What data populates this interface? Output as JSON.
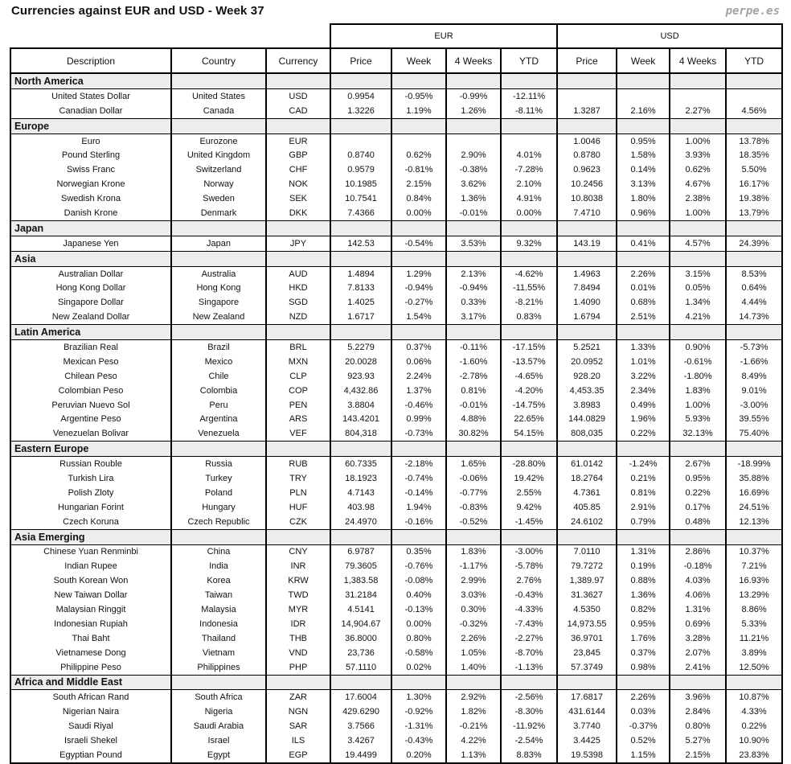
{
  "page": {
    "title": "Currencies against EUR and USD - Week 37",
    "watermark": "perpe.es"
  },
  "colors": {
    "positive": "#009933",
    "negative": "#ff4a4a",
    "section_bg": "#ededed"
  },
  "chart_data": {
    "type": "table",
    "group_headers": [
      "EUR",
      "USD"
    ],
    "columns": [
      "Description",
      "Country",
      "Currency",
      "Price",
      "Week",
      "4 Weeks",
      "YTD",
      "Price",
      "Week",
      "4 Weeks",
      "YTD"
    ],
    "sections": [
      {
        "name": "North America",
        "rows": [
          {
            "description": "United States Dollar",
            "country": "United States",
            "currency": "USD",
            "eur": [
              "0.9954",
              "-0.95%",
              "-0.99%",
              "-12.11%"
            ],
            "usd": [
              "",
              "",
              "",
              ""
            ]
          },
          {
            "description": "Canadian Dollar",
            "country": "Canada",
            "currency": "CAD",
            "eur": [
              "1.3226",
              "1.19%",
              "1.26%",
              "-8.11%"
            ],
            "usd": [
              "1.3287",
              "2.16%",
              "2.27%",
              "4.56%"
            ]
          }
        ]
      },
      {
        "name": "Europe",
        "rows": [
          {
            "description": "Euro",
            "country": "Eurozone",
            "currency": "EUR",
            "eur": [
              "",
              "",
              "",
              ""
            ],
            "usd": [
              "1.0046",
              "0.95%",
              "1.00%",
              "13.78%"
            ]
          },
          {
            "description": "Pound Sterling",
            "country": "United Kingdom",
            "currency": "GBP",
            "eur": [
              "0.8740",
              "0.62%",
              "2.90%",
              "4.01%"
            ],
            "usd": [
              "0.8780",
              "1.58%",
              "3.93%",
              "18.35%"
            ]
          },
          {
            "description": "Swiss Franc",
            "country": "Switzerland",
            "currency": "CHF",
            "eur": [
              "0.9579",
              "-0.81%",
              "-0.38%",
              "-7.28%"
            ],
            "usd": [
              "0.9623",
              "0.14%",
              "0.62%",
              "5.50%"
            ]
          },
          {
            "description": "Norwegian Krone",
            "country": "Norway",
            "currency": "NOK",
            "eur": [
              "10.1985",
              "2.15%",
              "3.62%",
              "2.10%"
            ],
            "usd": [
              "10.2456",
              "3.13%",
              "4.67%",
              "16.17%"
            ]
          },
          {
            "description": "Swedish Krona",
            "country": "Sweden",
            "currency": "SEK",
            "eur": [
              "10.7541",
              "0.84%",
              "1.36%",
              "4.91%"
            ],
            "usd": [
              "10.8038",
              "1.80%",
              "2.38%",
              "19.38%"
            ]
          },
          {
            "description": "Danish Krone",
            "country": "Denmark",
            "currency": "DKK",
            "eur": [
              "7.4366",
              "0.00%",
              "-0.01%",
              "0.00%"
            ],
            "usd": [
              "7.4710",
              "0.96%",
              "1.00%",
              "13.79%"
            ]
          }
        ]
      },
      {
        "name": "Japan",
        "rows": [
          {
            "description": "Japanese Yen",
            "country": "Japan",
            "currency": "JPY",
            "eur": [
              "142.53",
              "-0.54%",
              "3.53%",
              "9.32%"
            ],
            "usd": [
              "143.19",
              "0.41%",
              "4.57%",
              "24.39%"
            ]
          }
        ]
      },
      {
        "name": "Asia",
        "rows": [
          {
            "description": "Australian Dollar",
            "country": "Australia",
            "currency": "AUD",
            "eur": [
              "1.4894",
              "1.29%",
              "2.13%",
              "-4.62%"
            ],
            "usd": [
              "1.4963",
              "2.26%",
              "3.15%",
              "8.53%"
            ]
          },
          {
            "description": "Hong Kong Dollar",
            "country": "Hong Kong",
            "currency": "HKD",
            "eur": [
              "7.8133",
              "-0.94%",
              "-0.94%",
              "-11.55%"
            ],
            "usd": [
              "7.8494",
              "0.01%",
              "0.05%",
              "0.64%"
            ]
          },
          {
            "description": "Singapore Dollar",
            "country": "Singapore",
            "currency": "SGD",
            "eur": [
              "1.4025",
              "-0.27%",
              "0.33%",
              "-8.21%"
            ],
            "usd": [
              "1.4090",
              "0.68%",
              "1.34%",
              "4.44%"
            ]
          },
          {
            "description": "New Zealand Dollar",
            "country": "New Zealand",
            "currency": "NZD",
            "eur": [
              "1.6717",
              "1.54%",
              "3.17%",
              "0.83%"
            ],
            "usd": [
              "1.6794",
              "2.51%",
              "4.21%",
              "14.73%"
            ]
          }
        ]
      },
      {
        "name": "Latin America",
        "rows": [
          {
            "description": "Brazilian Real",
            "country": "Brazil",
            "currency": "BRL",
            "eur": [
              "5.2279",
              "0.37%",
              "-0.11%",
              "-17.15%"
            ],
            "usd": [
              "5.2521",
              "1.33%",
              "0.90%",
              "-5.73%"
            ]
          },
          {
            "description": "Mexican Peso",
            "country": "Mexico",
            "currency": "MXN",
            "eur": [
              "20.0028",
              "0.06%",
              "-1.60%",
              "-13.57%"
            ],
            "usd": [
              "20.0952",
              "1.01%",
              "-0.61%",
              "-1.66%"
            ]
          },
          {
            "description": "Chilean Peso",
            "country": "Chile",
            "currency": "CLP",
            "eur": [
              "923.93",
              "2.24%",
              "-2.78%",
              "-4.65%"
            ],
            "usd": [
              "928.20",
              "3.22%",
              "-1.80%",
              "8.49%"
            ]
          },
          {
            "description": "Colombian Peso",
            "country": "Colombia",
            "currency": "COP",
            "eur": [
              "4,432.86",
              "1.37%",
              "0.81%",
              "-4.20%"
            ],
            "usd": [
              "4,453.35",
              "2.34%",
              "1.83%",
              "9.01%"
            ]
          },
          {
            "description": "Peruvian Nuevo Sol",
            "country": "Peru",
            "currency": "PEN",
            "eur": [
              "3.8804",
              "-0.46%",
              "-0.01%",
              "-14.75%"
            ],
            "usd": [
              "3.8983",
              "0.49%",
              "1.00%",
              "-3.00%"
            ]
          },
          {
            "description": "Argentine Peso",
            "country": "Argentina",
            "currency": "ARS",
            "eur": [
              "143.4201",
              "0.99%",
              "4.88%",
              "22.65%"
            ],
            "usd": [
              "144.0829",
              "1.96%",
              "5.93%",
              "39.55%"
            ]
          },
          {
            "description": "Venezuelan Bolivar",
            "country": "Venezuela",
            "currency": "VEF",
            "eur": [
              "804,318",
              "-0.73%",
              "30.82%",
              "54.15%"
            ],
            "usd": [
              "808,035",
              "0.22%",
              "32.13%",
              "75.40%"
            ]
          }
        ]
      },
      {
        "name": "Eastern Europe",
        "rows": [
          {
            "description": "Russian Rouble",
            "country": "Russia",
            "currency": "RUB",
            "eur": [
              "60.7335",
              "-2.18%",
              "1.65%",
              "-28.80%"
            ],
            "usd": [
              "61.0142",
              "-1.24%",
              "2.67%",
              "-18.99%"
            ]
          },
          {
            "description": "Turkish Lira",
            "country": "Turkey",
            "currency": "TRY",
            "eur": [
              "18.1923",
              "-0.74%",
              "-0.06%",
              "19.42%"
            ],
            "usd": [
              "18.2764",
              "0.21%",
              "0.95%",
              "35.88%"
            ]
          },
          {
            "description": "Polish Zloty",
            "country": "Poland",
            "currency": "PLN",
            "eur": [
              "4.7143",
              "-0.14%",
              "-0.77%",
              "2.55%"
            ],
            "usd": [
              "4.7361",
              "0.81%",
              "0.22%",
              "16.69%"
            ]
          },
          {
            "description": "Hungarian Forint",
            "country": "Hungary",
            "currency": "HUF",
            "eur": [
              "403.98",
              "1.94%",
              "-0.83%",
              "9.42%"
            ],
            "usd": [
              "405.85",
              "2.91%",
              "0.17%",
              "24.51%"
            ]
          },
          {
            "description": "Czech Koruna",
            "country": "Czech Republic",
            "currency": "CZK",
            "eur": [
              "24.4970",
              "-0.16%",
              "-0.52%",
              "-1.45%"
            ],
            "usd": [
              "24.6102",
              "0.79%",
              "0.48%",
              "12.13%"
            ]
          }
        ]
      },
      {
        "name": "Asia Emerging",
        "rows": [
          {
            "description": "Chinese Yuan Renminbi",
            "country": "China",
            "currency": "CNY",
            "eur": [
              "6.9787",
              "0.35%",
              "1.83%",
              "-3.00%"
            ],
            "usd": [
              "7.0110",
              "1.31%",
              "2.86%",
              "10.37%"
            ]
          },
          {
            "description": "Indian Rupee",
            "country": "India",
            "currency": "INR",
            "eur": [
              "79.3605",
              "-0.76%",
              "-1.17%",
              "-5.78%"
            ],
            "usd": [
              "79.7272",
              "0.19%",
              "-0.18%",
              "7.21%"
            ]
          },
          {
            "description": "South Korean Won",
            "country": "Korea",
            "currency": "KRW",
            "eur": [
              "1,383.58",
              "-0.08%",
              "2.99%",
              "2.76%"
            ],
            "usd": [
              "1,389.97",
              "0.88%",
              "4.03%",
              "16.93%"
            ]
          },
          {
            "description": "New Taiwan Dollar",
            "country": "Taiwan",
            "currency": "TWD",
            "eur": [
              "31.2184",
              "0.40%",
              "3.03%",
              "-0.43%"
            ],
            "usd": [
              "31.3627",
              "1.36%",
              "4.06%",
              "13.29%"
            ]
          },
          {
            "description": "Malaysian Ringgit",
            "country": "Malaysia",
            "currency": "MYR",
            "eur": [
              "4.5141",
              "-0.13%",
              "0.30%",
              "-4.33%"
            ],
            "usd": [
              "4.5350",
              "0.82%",
              "1.31%",
              "8.86%"
            ]
          },
          {
            "description": "Indonesian Rupiah",
            "country": "Indonesia",
            "currency": "IDR",
            "eur": [
              "14,904.67",
              "0.00%",
              "-0.32%",
              "-7.43%"
            ],
            "usd": [
              "14,973.55",
              "0.95%",
              "0.69%",
              "5.33%"
            ],
            "neg_eur": [
              1
            ]
          },
          {
            "description": "Thai Baht",
            "country": "Thailand",
            "currency": "THB",
            "eur": [
              "36.8000",
              "0.80%",
              "2.26%",
              "-2.27%"
            ],
            "usd": [
              "36.9701",
              "1.76%",
              "3.28%",
              "11.21%"
            ]
          },
          {
            "description": "Vietnamese Dong",
            "country": "Vietnam",
            "currency": "VND",
            "eur": [
              "23,736",
              "-0.58%",
              "1.05%",
              "-8.70%"
            ],
            "usd": [
              "23,845",
              "0.37%",
              "2.07%",
              "3.89%"
            ]
          },
          {
            "description": "Philippine Peso",
            "country": "Philippines",
            "currency": "PHP",
            "eur": [
              "57.1110",
              "0.02%",
              "1.40%",
              "-1.13%"
            ],
            "usd": [
              "57.3749",
              "0.98%",
              "2.41%",
              "12.50%"
            ]
          }
        ]
      },
      {
        "name": "Africa and Middle East",
        "rows": [
          {
            "description": "South African Rand",
            "country": "South Africa",
            "currency": "ZAR",
            "eur": [
              "17.6004",
              "1.30%",
              "2.92%",
              "-2.56%"
            ],
            "usd": [
              "17.6817",
              "2.26%",
              "3.96%",
              "10.87%"
            ]
          },
          {
            "description": "Nigerian Naira",
            "country": "Nigeria",
            "currency": "NGN",
            "eur": [
              "429.6290",
              "-0.92%",
              "1.82%",
              "-8.30%"
            ],
            "usd": [
              "431.6144",
              "0.03%",
              "2.84%",
              "4.33%"
            ]
          },
          {
            "description": "Saudi Riyal",
            "country": "Saudi Arabia",
            "currency": "SAR",
            "eur": [
              "3.7566",
              "-1.31%",
              "-0.21%",
              "-11.92%"
            ],
            "usd": [
              "3.7740",
              "-0.37%",
              "0.80%",
              "0.22%"
            ]
          },
          {
            "description": "Israeli Shekel",
            "country": "Israel",
            "currency": "ILS",
            "eur": [
              "3.4267",
              "-0.43%",
              "4.22%",
              "-2.54%"
            ],
            "usd": [
              "3.4425",
              "0.52%",
              "5.27%",
              "10.90%"
            ]
          },
          {
            "description": "Egyptian Pound",
            "country": "Egypt",
            "currency": "EGP",
            "eur": [
              "19.4499",
              "0.20%",
              "1.13%",
              "8.83%"
            ],
            "usd": [
              "19.5398",
              "1.15%",
              "2.15%",
              "23.83%"
            ]
          }
        ]
      }
    ]
  }
}
